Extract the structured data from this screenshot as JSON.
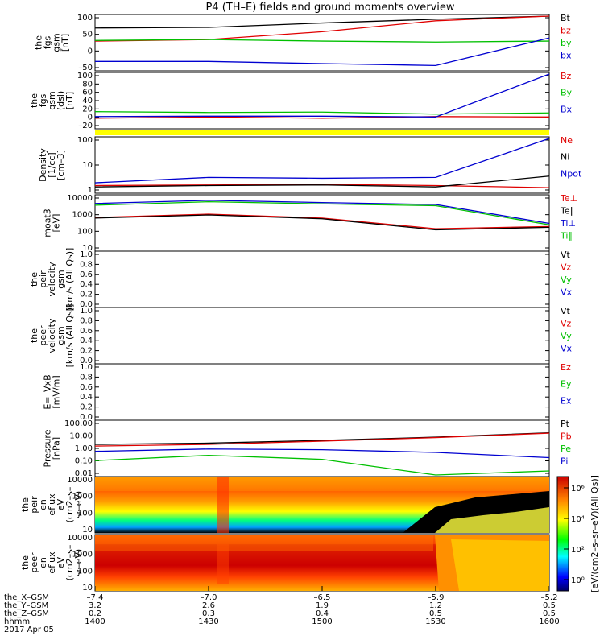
{
  "title": "P4 (TH–E) fields and ground moments overview",
  "colors": {
    "black": "#000000",
    "red": "#e00000",
    "green": "#00c000",
    "blue": "#0000d0",
    "yellow": "#ffff00"
  },
  "panels": [
    {
      "id": "fgs",
      "ylabel": [
        "the",
        "fgs",
        "gsm",
        "[nT]"
      ],
      "yticks": [
        "100",
        "50",
        "0",
        "–50"
      ],
      "legend": [
        {
          "text": "Bt",
          "color": "black"
        },
        {
          "text": "bz",
          "color": "red"
        },
        {
          "text": "by",
          "color": "green"
        },
        {
          "text": "bx",
          "color": "blue"
        }
      ]
    },
    {
      "id": "fgs-dsl",
      "ylabel": [
        "the",
        "fgs",
        "gsm",
        "(dsl)",
        "[nT]"
      ],
      "yticks": [
        "100",
        "80",
        "60",
        "40",
        "20",
        "0",
        "–20"
      ],
      "legend": [
        {
          "text": "Bz",
          "color": "red"
        },
        {
          "text": "By",
          "color": "green"
        },
        {
          "text": "Bx",
          "color": "blue"
        }
      ]
    },
    {
      "id": "density",
      "ylabel": [
        "Density",
        "[1/cc]",
        "[cm–3]"
      ],
      "yticks": [
        "100",
        "10",
        "1"
      ],
      "legend": [
        {
          "text": "Ne",
          "color": "red"
        },
        {
          "text": "Ni",
          "color": "black"
        },
        {
          "text": "Npot",
          "color": "blue"
        }
      ]
    },
    {
      "id": "temp",
      "ylabel": [
        "moat3",
        "[eV]"
      ],
      "yticks": [
        "10000",
        "1000",
        "100",
        "10"
      ],
      "legend": [
        {
          "text": "Te⊥",
          "color": "red"
        },
        {
          "text": "Te∥",
          "color": "black"
        },
        {
          "text": "Ti⊥",
          "color": "blue"
        },
        {
          "text": "Ti∥",
          "color": "green"
        }
      ]
    },
    {
      "id": "peir-vel",
      "ylabel": [
        "the",
        "peir",
        "velocity",
        "gsm",
        "[km/s (All Qs)]"
      ],
      "yticks": [
        "1.0",
        "0.8",
        "0.6",
        "0.4",
        "0.2",
        "0.0"
      ],
      "legend": [
        {
          "text": "Vt",
          "color": "black"
        },
        {
          "text": "Vz",
          "color": "red"
        },
        {
          "text": "Vy",
          "color": "green"
        },
        {
          "text": "Vx",
          "color": "blue"
        }
      ]
    },
    {
      "id": "peer-vel",
      "ylabel": [
        "the",
        "peer",
        "velocity",
        "gsm",
        "[km/s (All Qs)]"
      ],
      "yticks": [
        "1.0",
        "0.8",
        "0.6",
        "0.4",
        "0.2",
        "0.0"
      ],
      "legend": [
        {
          "text": "Vt",
          "color": "black"
        },
        {
          "text": "Vz",
          "color": "red"
        },
        {
          "text": "Vy",
          "color": "green"
        },
        {
          "text": "Vx",
          "color": "blue"
        }
      ]
    },
    {
      "id": "evxb",
      "ylabel": [
        "E=–VxB",
        "[mV/m]"
      ],
      "yticks": [
        "1.0",
        "0.8",
        "0.6",
        "0.4",
        "0.2",
        "0.0"
      ],
      "legend": [
        {
          "text": "Ez",
          "color": "red"
        },
        {
          "text": "Ey",
          "color": "green"
        },
        {
          "text": "Ex",
          "color": "blue"
        }
      ]
    },
    {
      "id": "pressure",
      "ylabel": [
        "Pressure",
        "[nPa]"
      ],
      "yticks": [
        "100.00",
        "10.00",
        "1.00",
        "0.10",
        "0.01"
      ],
      "legend": [
        {
          "text": "Pt",
          "color": "black"
        },
        {
          "text": "Pb",
          "color": "red"
        },
        {
          "text": "Pe",
          "color": "green"
        },
        {
          "text": "Pi",
          "color": "blue"
        }
      ]
    },
    {
      "id": "peir-spec",
      "ylabel": [
        "the",
        "peir",
        "en",
        "eflux",
        "eV",
        "(cm2–s–",
        "sr–eV)"
      ],
      "yticks": [
        "10000",
        "1000",
        "100",
        "10"
      ]
    },
    {
      "id": "peer-spec",
      "ylabel": [
        "the",
        "peer",
        "en",
        "eflux",
        "eV",
        "(cm2–s–",
        "sr–eV)"
      ],
      "yticks": [
        "10000",
        "1000",
        "100",
        "10"
      ]
    }
  ],
  "colorbar": {
    "ticks": [
      "10⁶",
      "10⁴",
      "10²",
      "10⁰"
    ],
    "label": "[eV/(cm2–s–sr–eV)(All Qs)]"
  },
  "xaxis": {
    "rows": [
      {
        "label": "the_X–GSM",
        "values": [
          "–7.4",
          "–7.0",
          "–6.5",
          "–5.9",
          "–5.2"
        ]
      },
      {
        "label": "the_Y–GSM",
        "values": [
          "3.2",
          "2.6",
          "1.9",
          "1.2",
          "0.5"
        ]
      },
      {
        "label": "the_Z–GSM",
        "values": [
          "0.2",
          "0.3",
          "0.4",
          "0.5",
          "0.5"
        ]
      },
      {
        "label": "hhmm",
        "values": [
          "1400",
          "1430",
          "1500",
          "1530",
          "1600"
        ]
      }
    ],
    "date": "2017 Apr 05"
  },
  "chart_data": {
    "type": "line",
    "x_minutes_hhmm": [
      "1400",
      "1430",
      "1500",
      "1530",
      "1600"
    ],
    "panels": {
      "fgs": {
        "ylim": [
          -70,
          100
        ],
        "series": [
          {
            "name": "Bt",
            "values": [
              62,
              64,
              78,
              90,
              100
            ]
          },
          {
            "name": "bz",
            "values": [
              20,
              25,
              50,
              85,
              100
            ]
          },
          {
            "name": "by",
            "values": [
              22,
              25,
              20,
              17,
              20
            ]
          },
          {
            "name": "bx",
            "values": [
              -45,
              -45,
              -52,
              -58,
              30
            ]
          }
        ]
      },
      "fgs-dsl": {
        "ylim": [
          -30,
          100
        ],
        "series": [
          {
            "name": "Bz",
            "values": [
              -8,
              -5,
              -8,
              -4,
              -5
            ]
          },
          {
            "name": "By",
            "values": [
              8,
              6,
              7,
              2,
              5
            ]
          },
          {
            "name": "Bx",
            "values": [
              -4,
              -3,
              -3,
              -5,
              100
            ]
          }
        ]
      },
      "density": {
        "ylim": [
          0.8,
          200
        ],
        "log": true,
        "series": [
          {
            "name": "Ne",
            "values": [
              1.5,
              1.6,
              1.7,
              1.5,
              1.2
            ]
          },
          {
            "name": "Ni",
            "values": [
              1.3,
              1.5,
              1.6,
              1.3,
              4.0
            ]
          },
          {
            "name": "Npot",
            "values": [
              2.0,
              3.5,
              3.2,
              3.5,
              200
            ]
          }
        ]
      },
      "temp": {
        "ylim": [
          10,
          10000
        ],
        "log": true,
        "series": [
          {
            "name": "Te⊥",
            "values": [
              650,
              1000,
              600,
              150,
              200
            ]
          },
          {
            "name": "Te∥",
            "values": [
              600,
              900,
              550,
              130,
              180
            ]
          },
          {
            "name": "Ti⊥",
            "values": [
              4000,
              6000,
              4500,
              3500,
              300
            ]
          },
          {
            "name": "Ti∥",
            "values": [
              3200,
              5000,
              3800,
              3000,
              250
            ]
          }
        ]
      },
      "pressure": {
        "ylim": [
          0.01,
          100
        ],
        "log": true,
        "series": [
          {
            "name": "Pt",
            "values": [
              2.0,
              2.5,
              4.0,
              7.0,
              15.0
            ]
          },
          {
            "name": "Pb",
            "values": [
              1.5,
              2.0,
              3.5,
              6.5,
              14.0
            ]
          },
          {
            "name": "Pe",
            "values": [
              0.12,
              0.3,
              0.15,
              0.01,
              0.02
            ]
          },
          {
            "name": "Pi",
            "values": [
              0.6,
              0.9,
              0.8,
              0.5,
              0.2
            ]
          }
        ]
      }
    }
  }
}
